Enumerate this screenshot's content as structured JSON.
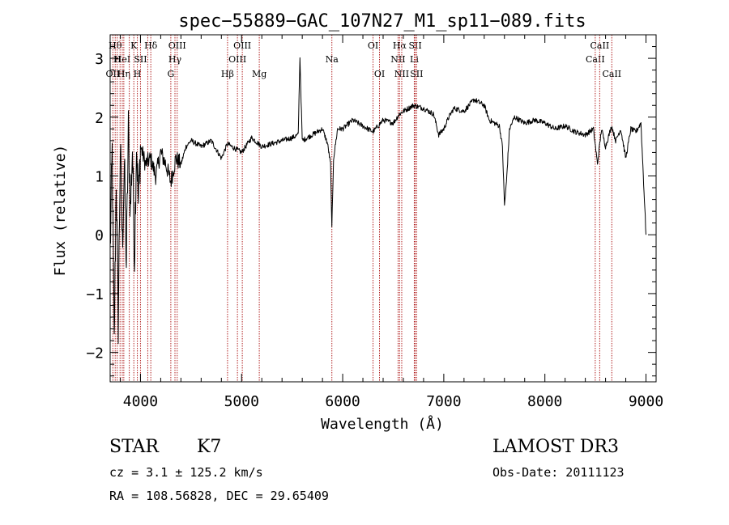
{
  "chart_data": {
    "type": "line",
    "title": "spec−55889−GAC_107N27_M1_sp11−089.fits",
    "xlabel": "Wavelength (Å)",
    "ylabel": "Flux (relative)",
    "xlim": [
      3700,
      9100
    ],
    "ylim": [
      -2.5,
      3.4
    ],
    "xticks": [
      4000,
      5000,
      6000,
      7000,
      8000,
      9000
    ],
    "xtick_labels": [
      "4000",
      "5000",
      "6000",
      "7000",
      "8000",
      "9000"
    ],
    "yticks": [
      -2,
      -1,
      0,
      1,
      2,
      3
    ],
    "ytick_labels": [
      "−2",
      "−1",
      "0",
      "1",
      "2",
      "3"
    ],
    "line_color": "#000000",
    "marker_color": "#b22222",
    "series": [
      {
        "name": "flux",
        "x": [
          3700,
          3720,
          3740,
          3760,
          3780,
          3800,
          3820,
          3840,
          3860,
          3880,
          3900,
          3920,
          3940,
          3960,
          3980,
          4000,
          4050,
          4100,
          4150,
          4200,
          4250,
          4300,
          4350,
          4400,
          4450,
          4500,
          4600,
          4700,
          4800,
          4860,
          4900,
          5000,
          5100,
          5200,
          5300,
          5400,
          5500,
          5560,
          5577,
          5600,
          5700,
          5800,
          5850,
          5880,
          5893,
          5910,
          5950,
          6000,
          6100,
          6200,
          6300,
          6400,
          6500,
          6560,
          6600,
          6700,
          6800,
          6900,
          6950,
          7000,
          7050,
          7100,
          7200,
          7300,
          7400,
          7450,
          7500,
          7550,
          7580,
          7600,
          7620,
          7650,
          7700,
          7800,
          7900,
          8000,
          8100,
          8200,
          8300,
          8400,
          8480,
          8520,
          8560,
          8600,
          8660,
          8700,
          8750,
          8800,
          8850,
          8900,
          8950,
          9000
        ],
        "y": [
          -0.3,
          1.4,
          -1.9,
          1.0,
          -1.5,
          1.5,
          -0.2,
          1.2,
          -0.5,
          1.8,
          0.4,
          1.5,
          -0.4,
          1.6,
          0.5,
          1.5,
          1.2,
          1.3,
          1.0,
          1.4,
          1.2,
          0.9,
          1.3,
          1.2,
          1.5,
          1.6,
          1.5,
          1.6,
          1.3,
          1.55,
          1.5,
          1.4,
          1.65,
          1.5,
          1.55,
          1.6,
          1.65,
          1.7,
          3.0,
          1.6,
          1.7,
          1.8,
          1.55,
          1.2,
          0.1,
          1.3,
          1.8,
          1.8,
          1.95,
          1.85,
          1.75,
          1.95,
          1.9,
          2.05,
          2.1,
          2.2,
          2.15,
          2.05,
          1.7,
          1.8,
          2.0,
          2.15,
          2.1,
          2.3,
          2.2,
          1.95,
          1.9,
          1.85,
          1.5,
          0.5,
          0.9,
          1.8,
          2.0,
          1.9,
          1.95,
          1.9,
          1.8,
          1.85,
          1.75,
          1.7,
          1.8,
          1.2,
          1.8,
          1.5,
          1.85,
          1.6,
          1.8,
          1.3,
          1.8,
          1.75,
          1.9,
          0.0
        ]
      }
    ],
    "line_markers": [
      {
        "wl": 3750,
        "label": "Hθ",
        "row": 0
      },
      {
        "wl": 3770,
        "label": "H",
        "row": 1
      },
      {
        "wl": 3727,
        "label": "OII",
        "row": 2
      },
      {
        "wl": 3798,
        "label": "",
        "row": 0
      },
      {
        "wl": 3820,
        "label": "HeI",
        "row": 1
      },
      {
        "wl": 3835,
        "label": "Hη",
        "row": 2
      },
      {
        "wl": 3889,
        "label": "",
        "row": 0
      },
      {
        "wl": 3934,
        "label": "K",
        "row": 0
      },
      {
        "wl": 3969,
        "label": "H",
        "row": 2
      },
      {
        "wl": 4000,
        "label": "SII",
        "row": 1
      },
      {
        "wl": 4102,
        "label": "Hδ",
        "row": 0
      },
      {
        "wl": 4072,
        "label": "",
        "row": 1
      },
      {
        "wl": 4300,
        "label": "G",
        "row": 2
      },
      {
        "wl": 4341,
        "label": "Hγ",
        "row": 1
      },
      {
        "wl": 4363,
        "label": "OIII",
        "row": 0
      },
      {
        "wl": 4861,
        "label": "Hβ",
        "row": 2
      },
      {
        "wl": 4959,
        "label": "OIII",
        "row": 1
      },
      {
        "wl": 5007,
        "label": "OIII",
        "row": 0
      },
      {
        "wl": 5175,
        "label": "Mg",
        "row": 2
      },
      {
        "wl": 5893,
        "label": "Na",
        "row": 1
      },
      {
        "wl": 6300,
        "label": "OI",
        "row": 0
      },
      {
        "wl": 6364,
        "label": "OI",
        "row": 2
      },
      {
        "wl": 6548,
        "label": "NII",
        "row": 1
      },
      {
        "wl": 6563,
        "label": "Hα",
        "row": 0
      },
      {
        "wl": 6584,
        "label": "NII",
        "row": 2
      },
      {
        "wl": 6708,
        "label": "Li",
        "row": 1
      },
      {
        "wl": 6717,
        "label": "SII",
        "row": 0
      },
      {
        "wl": 6731,
        "label": "SII",
        "row": 2
      },
      {
        "wl": 8498,
        "label": "CaII",
        "row": 1
      },
      {
        "wl": 8542,
        "label": "CaII",
        "row": 0
      },
      {
        "wl": 8662,
        "label": "CaII",
        "row": 2
      }
    ]
  },
  "info": {
    "object_class": "STAR",
    "subclass": "K7",
    "survey": "LAMOST DR3",
    "cz_line": "cz = 3.1 ± 125.2 km/s",
    "obs_date_line": "Obs-Date: 20111123",
    "coords_line": "RA = 108.56828, DEC =  29.65409"
  }
}
